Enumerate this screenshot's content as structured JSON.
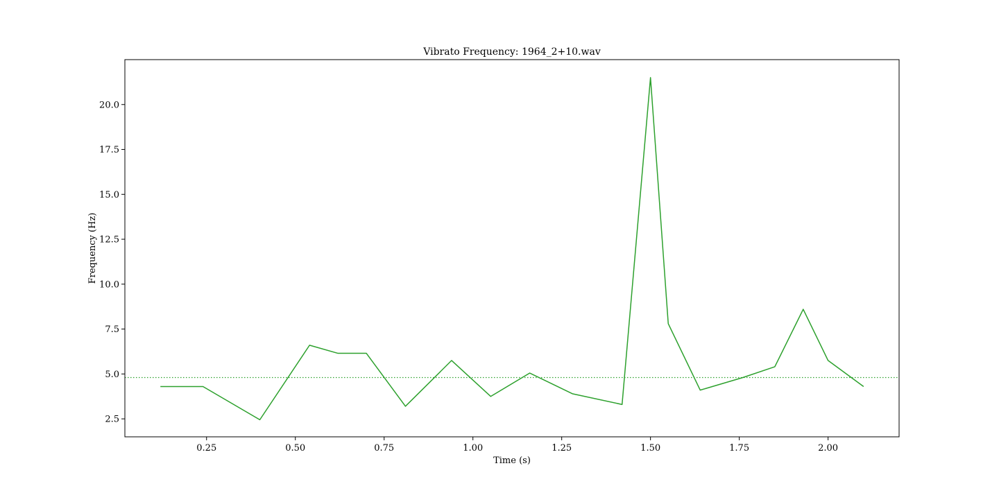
{
  "chart_data": {
    "type": "line",
    "title": "Vibrato Frequency: 1964_2+10.wav",
    "xlabel": "Time (s)",
    "ylabel": "Frequency (Hz)",
    "xlim": [
      0.02,
      2.2
    ],
    "ylim": [
      1.5,
      22.5
    ],
    "xticks": [
      0.25,
      0.5,
      0.75,
      1.0,
      1.25,
      1.5,
      1.75,
      2.0
    ],
    "xtick_labels": [
      "0.25",
      "0.50",
      "0.75",
      "1.00",
      "1.25",
      "1.50",
      "1.75",
      "2.00"
    ],
    "yticks": [
      2.5,
      5.0,
      7.5,
      10.0,
      12.5,
      15.0,
      17.5,
      20.0
    ],
    "ytick_labels": [
      "2.5",
      "5.0",
      "7.5",
      "10.0",
      "12.5",
      "15.0",
      "17.5",
      "20.0"
    ],
    "grid": false,
    "legend": "none",
    "series": [
      {
        "color": "#2ca02c",
        "style": "solid",
        "x": [
          0.12,
          0.24,
          0.4,
          0.54,
          0.62,
          0.7,
          0.81,
          0.94,
          1.05,
          1.16,
          1.28,
          1.42,
          1.5,
          1.55,
          1.64,
          1.76,
          1.85,
          1.93,
          2.0,
          2.1
        ],
        "y": [
          4.3,
          4.3,
          2.45,
          6.6,
          6.15,
          6.15,
          3.2,
          5.75,
          3.75,
          5.05,
          3.9,
          3.3,
          21.5,
          7.8,
          4.1,
          4.8,
          5.4,
          8.6,
          5.75,
          4.3
        ]
      }
    ],
    "reference_lines": [
      {
        "orientation": "horizontal",
        "y": 4.8,
        "color": "#2ca02c",
        "style": "dotted"
      }
    ]
  }
}
